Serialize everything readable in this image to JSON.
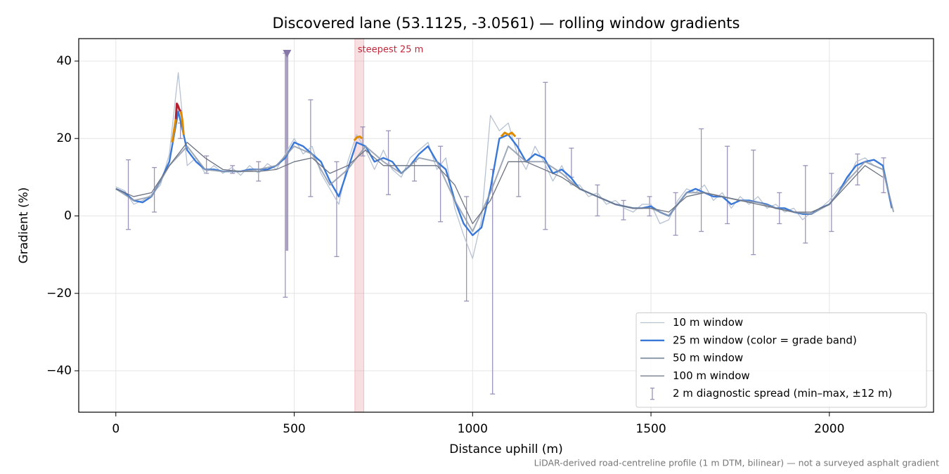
{
  "chart_data": {
    "type": "line",
    "title": "Discovered lane (53.1125, -3.0561) — rolling window gradients",
    "x_label": "Distance uphill (m)",
    "y_label": "Gradient (%)",
    "footnote": "LiDAR-derived road-centreline profile (1 m DTM, bilinear) — not a surveyed asphalt gradient",
    "xlim": [
      -104,
      2292
    ],
    "ylim": [
      -50.7,
      45.8
    ],
    "xticks": [
      0,
      500,
      1000,
      1500,
      2000
    ],
    "yticks": [
      {
        "value": -40,
        "label": "−40"
      },
      {
        "value": -20,
        "label": "−20"
      },
      0,
      20,
      40
    ],
    "grid": true,
    "legend": "lower right",
    "series": [
      {
        "name": "10 m window",
        "color": "#b6c2d2",
        "width": 1.3,
        "x": [
          0,
          25,
          50,
          75,
          100,
          125,
          150,
          175,
          200,
          225,
          250,
          275,
          300,
          325,
          350,
          375,
          400,
          425,
          450,
          475,
          500,
          525,
          550,
          575,
          600,
          625,
          650,
          675,
          700,
          725,
          750,
          775,
          800,
          825,
          850,
          875,
          900,
          925,
          950,
          975,
          1000,
          1025,
          1050,
          1075,
          1100,
          1125,
          1150,
          1175,
          1200,
          1225,
          1250,
          1275,
          1300,
          1325,
          1350,
          1375,
          1400,
          1425,
          1450,
          1475,
          1500,
          1525,
          1550,
          1575,
          1600,
          1625,
          1650,
          1675,
          1700,
          1725,
          1750,
          1775,
          1800,
          1825,
          1850,
          1875,
          1900,
          1925,
          1950,
          1975,
          2000,
          2025,
          2050,
          2075,
          2100,
          2125,
          2150,
          2175
        ],
        "values": [
          7.5,
          6.5,
          3,
          4,
          5.5,
          8,
          16,
          37,
          13,
          15,
          11,
          13,
          11,
          12.5,
          10.5,
          13,
          11,
          13.5,
          12,
          16,
          20,
          16,
          18,
          11,
          7,
          3,
          14,
          21,
          17,
          12,
          17,
          12,
          10,
          15,
          17,
          19,
          12,
          15,
          2,
          -5,
          -11,
          -1,
          26,
          22,
          24,
          16,
          12,
          18,
          14,
          9,
          13,
          8,
          8,
          5,
          6,
          3,
          4,
          2,
          1,
          3,
          3,
          -2,
          -1,
          4,
          7,
          6,
          8,
          4,
          6,
          2,
          5,
          3,
          5,
          2,
          3,
          1,
          2,
          -1,
          1,
          2,
          4,
          7,
          9,
          14,
          15,
          13,
          12,
          2
        ]
      },
      {
        "name": "25 m window (color = grade band)",
        "color": "#3a78d8",
        "width": 2.4,
        "x": [
          0,
          25,
          50,
          75,
          100,
          125,
          150,
          175,
          200,
          225,
          250,
          275,
          300,
          325,
          350,
          375,
          400,
          425,
          450,
          475,
          500,
          525,
          550,
          575,
          600,
          625,
          650,
          675,
          700,
          725,
          750,
          775,
          800,
          825,
          850,
          875,
          900,
          925,
          950,
          975,
          1000,
          1025,
          1050,
          1075,
          1100,
          1125,
          1150,
          1175,
          1200,
          1225,
          1250,
          1275,
          1300,
          1325,
          1350,
          1375,
          1400,
          1425,
          1450,
          1475,
          1500,
          1525,
          1550,
          1575,
          1600,
          1625,
          1650,
          1675,
          1700,
          1725,
          1750,
          1775,
          1800,
          1825,
          1850,
          1875,
          1900,
          1925,
          1950,
          1975,
          2000,
          2025,
          2050,
          2075,
          2100,
          2125,
          2150,
          2175
        ],
        "values": [
          7,
          6,
          4,
          3.5,
          5,
          9,
          14,
          27,
          17,
          14,
          12,
          12,
          11.5,
          11.5,
          11.5,
          12,
          12,
          12,
          13,
          15,
          19,
          18,
          16,
          14,
          9,
          5,
          12,
          19,
          18,
          14,
          15,
          14,
          11,
          13,
          16,
          18,
          14,
          12,
          4,
          -2,
          -5,
          -3,
          7,
          20,
          21,
          18,
          14,
          16,
          15,
          11,
          12,
          10,
          7,
          6,
          5,
          4,
          3,
          2.5,
          2,
          2,
          2.5,
          1,
          0,
          3,
          6,
          7,
          6,
          5,
          5,
          3,
          4,
          4,
          3.5,
          3,
          2,
          2,
          1,
          0.5,
          0.5,
          2,
          3,
          6,
          10,
          13,
          14,
          14.5,
          13,
          2
        ]
      },
      {
        "name": "50 m window",
        "color": "#8f9aaa",
        "width": 2,
        "x": [
          0,
          50,
          100,
          150,
          200,
          250,
          300,
          350,
          400,
          450,
          500,
          550,
          600,
          650,
          700,
          750,
          800,
          850,
          900,
          950,
          1000,
          1050,
          1100,
          1150,
          1200,
          1250,
          1300,
          1350,
          1400,
          1450,
          1500,
          1550,
          1600,
          1650,
          1700,
          1750,
          1800,
          1850,
          1900,
          1950,
          2000,
          2050,
          2100,
          2150,
          2180
        ],
        "values": [
          7,
          4,
          5,
          13,
          18,
          12,
          11.5,
          11.5,
          12,
          13,
          18,
          16,
          8,
          12,
          18,
          14,
          11,
          15,
          14,
          4,
          -4,
          6,
          18,
          14,
          14,
          11,
          7,
          5,
          3,
          2,
          2,
          0,
          6,
          6,
          5,
          4,
          3.5,
          2,
          1,
          0.5,
          3,
          9,
          14,
          12,
          1
        ]
      },
      {
        "name": "100 m window",
        "color": "#6b7280",
        "width": 1.3,
        "x": [
          0,
          50,
          100,
          150,
          200,
          250,
          300,
          350,
          400,
          450,
          500,
          550,
          600,
          650,
          700,
          750,
          800,
          850,
          900,
          950,
          1000,
          1050,
          1100,
          1150,
          1200,
          1250,
          1300,
          1350,
          1400,
          1450,
          1500,
          1550,
          1600,
          1650,
          1700,
          1750,
          1800,
          1850,
          1900,
          1950,
          2000,
          2050,
          2100,
          2150
        ],
        "values": [
          7,
          5,
          6,
          13,
          19,
          15,
          12,
          11.5,
          11.5,
          12,
          14,
          15,
          11,
          13,
          17,
          13,
          13,
          13,
          13,
          8,
          -2,
          4,
          14,
          14,
          12,
          10,
          7,
          5,
          3,
          2,
          2,
          1,
          5,
          6,
          5,
          4,
          3,
          2,
          1,
          1,
          3,
          8,
          13,
          10
        ]
      }
    ],
    "highlights": [
      {
        "color": "#e08a00",
        "x": [
          158,
          163,
          168
        ],
        "values": [
          19,
          22,
          25
        ]
      },
      {
        "color": "#b5202e",
        "x": [
          168,
          171,
          174,
          178,
          182
        ],
        "values": [
          25,
          29,
          28.5,
          27.5,
          27
        ]
      },
      {
        "color": "#e08a00",
        "x": [
          182,
          186,
          190
        ],
        "values": [
          27,
          25,
          21
        ]
      },
      {
        "color": "#e08a00",
        "x": [
          668,
          676,
          684,
          690
        ],
        "values": [
          19.5,
          20.3,
          20.5,
          20
        ]
      },
      {
        "color": "#e08a00",
        "x": [
          1080,
          1090,
          1100,
          1110,
          1120
        ],
        "values": [
          20.5,
          21.5,
          21,
          21.5,
          20.5
        ]
      }
    ],
    "errorbars": {
      "name": "2 m diagnostic spread (min–max, ±12 m)",
      "color": "#9c94b8",
      "x": [
        35,
        108,
        181,
        254,
        327,
        400,
        475,
        546,
        619,
        692,
        764,
        837,
        910,
        983,
        1056,
        1129,
        1204,
        1277,
        1350,
        1423,
        1496,
        1569,
        1641,
        1714,
        1787,
        1860,
        1933,
        2006,
        2079,
        2152
      ],
      "low": [
        -3.5,
        1,
        20,
        11,
        11,
        9,
        -21,
        5,
        -10.5,
        15.5,
        5.5,
        9,
        -1.5,
        -22,
        -46,
        5,
        -3.5,
        10,
        0,
        -1,
        0,
        -5,
        -4,
        -2,
        -10,
        -2,
        -7,
        -4,
        8,
        6
      ],
      "high": [
        14.5,
        12.5,
        24,
        15.5,
        13,
        14,
        42,
        30,
        14,
        23,
        22,
        14,
        18,
        5,
        12,
        20,
        34.5,
        17.5,
        8,
        4,
        5,
        6,
        22.5,
        18,
        17,
        6,
        13,
        11,
        16,
        15
      ]
    },
    "spike": {
      "color": "#8878a8",
      "x": 480,
      "top": 42,
      "bottom": -9
    },
    "band": {
      "label": "steepest 25 m",
      "color": "#e8a0a8",
      "label_color": "#c0283a",
      "x": [
        670,
        695
      ]
    }
  }
}
